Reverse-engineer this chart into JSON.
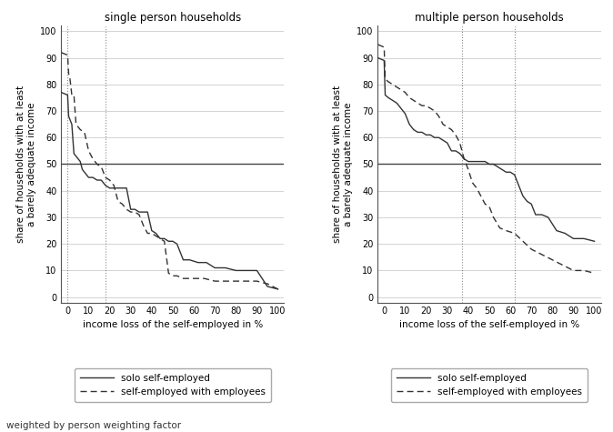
{
  "left_title": "single person households",
  "right_title": "multiple person households",
  "xlabel": "income loss of the self-employed in %",
  "ylabel": "share of households with at least\na barely adequate income",
  "footnote": "weighted by person weighting factor",
  "hline_y": 50,
  "left_vlines": [
    0,
    18
  ],
  "right_vlines": [
    37,
    62
  ],
  "xlim": [
    -3,
    103
  ],
  "ylim": [
    -2,
    102
  ],
  "xticks": [
    0,
    10,
    20,
    30,
    40,
    50,
    60,
    70,
    80,
    90,
    100
  ],
  "yticks": [
    0,
    10,
    20,
    30,
    40,
    50,
    60,
    70,
    80,
    90,
    100
  ],
  "line_color": "#333333",
  "grid_color": "#cccccc",
  "left_solo_x": [
    -3,
    0,
    0.5,
    1,
    2,
    3,
    4,
    5,
    6,
    7,
    8,
    9,
    10,
    12,
    14,
    16,
    18,
    20,
    22,
    24,
    26,
    28,
    30,
    32,
    34,
    36,
    38,
    40,
    42,
    44,
    46,
    48,
    50,
    52,
    55,
    58,
    62,
    66,
    70,
    75,
    80,
    85,
    90,
    95,
    100
  ],
  "left_solo_y": [
    77,
    76,
    68,
    67,
    65,
    54,
    53,
    52,
    51,
    48,
    47,
    46,
    45,
    45,
    44,
    44,
    42,
    41,
    41,
    41,
    41,
    41,
    33,
    33,
    32,
    32,
    32,
    25,
    24,
    22,
    22,
    21,
    21,
    20,
    14,
    14,
    13,
    13,
    11,
    11,
    10,
    10,
    10,
    4,
    3
  ],
  "left_emp_x": [
    -3,
    0,
    0.5,
    1,
    2,
    3,
    4,
    5,
    6,
    8,
    10,
    12,
    14,
    16,
    18,
    20,
    22,
    24,
    26,
    28,
    30,
    32,
    34,
    36,
    38,
    40,
    42,
    44,
    46,
    48,
    50,
    52,
    55,
    60,
    65,
    70,
    75,
    80,
    85,
    90,
    95,
    100
  ],
  "left_emp_y": [
    92,
    91,
    84,
    83,
    76,
    76,
    65,
    64,
    63,
    62,
    55,
    52,
    50,
    49,
    45,
    44,
    42,
    36,
    35,
    33,
    32,
    32,
    31,
    27,
    24,
    24,
    23,
    22,
    21,
    9,
    8,
    8,
    7,
    7,
    7,
    6,
    6,
    6,
    6,
    6,
    5,
    3
  ],
  "right_solo_x": [
    -3,
    0,
    0.5,
    2,
    4,
    6,
    8,
    10,
    12,
    14,
    16,
    18,
    20,
    22,
    24,
    26,
    28,
    30,
    32,
    34,
    36,
    38,
    40,
    42,
    44,
    46,
    48,
    50,
    52,
    54,
    56,
    58,
    60,
    62,
    64,
    66,
    68,
    70,
    72,
    75,
    78,
    82,
    86,
    90,
    95,
    100
  ],
  "right_solo_y": [
    90,
    89,
    76,
    75,
    74,
    73,
    71,
    69,
    65,
    63,
    62,
    62,
    61,
    61,
    60,
    60,
    59,
    58,
    55,
    55,
    54,
    52,
    51,
    51,
    51,
    51,
    51,
    50,
    50,
    49,
    48,
    47,
    47,
    46,
    42,
    38,
    36,
    35,
    31,
    31,
    30,
    25,
    24,
    22,
    22,
    21
  ],
  "right_emp_x": [
    -3,
    0,
    0.5,
    2,
    4,
    6,
    8,
    10,
    12,
    14,
    16,
    18,
    20,
    22,
    24,
    26,
    28,
    30,
    32,
    34,
    36,
    38,
    40,
    42,
    44,
    46,
    48,
    50,
    52,
    55,
    58,
    62,
    66,
    70,
    75,
    80,
    85,
    90,
    95,
    100
  ],
  "right_emp_y": [
    95,
    94,
    82,
    81,
    80,
    79,
    78,
    77,
    75,
    74,
    73,
    72,
    72,
    71,
    70,
    68,
    65,
    64,
    63,
    61,
    58,
    52,
    48,
    43,
    41,
    38,
    35,
    34,
    30,
    26,
    25,
    24,
    21,
    18,
    16,
    14,
    12,
    10,
    10,
    9
  ],
  "legend_entries": [
    "solo self-employed",
    "self-employed with employees"
  ],
  "solo_linestyle": "solid",
  "emp_linestyle": "dashed"
}
